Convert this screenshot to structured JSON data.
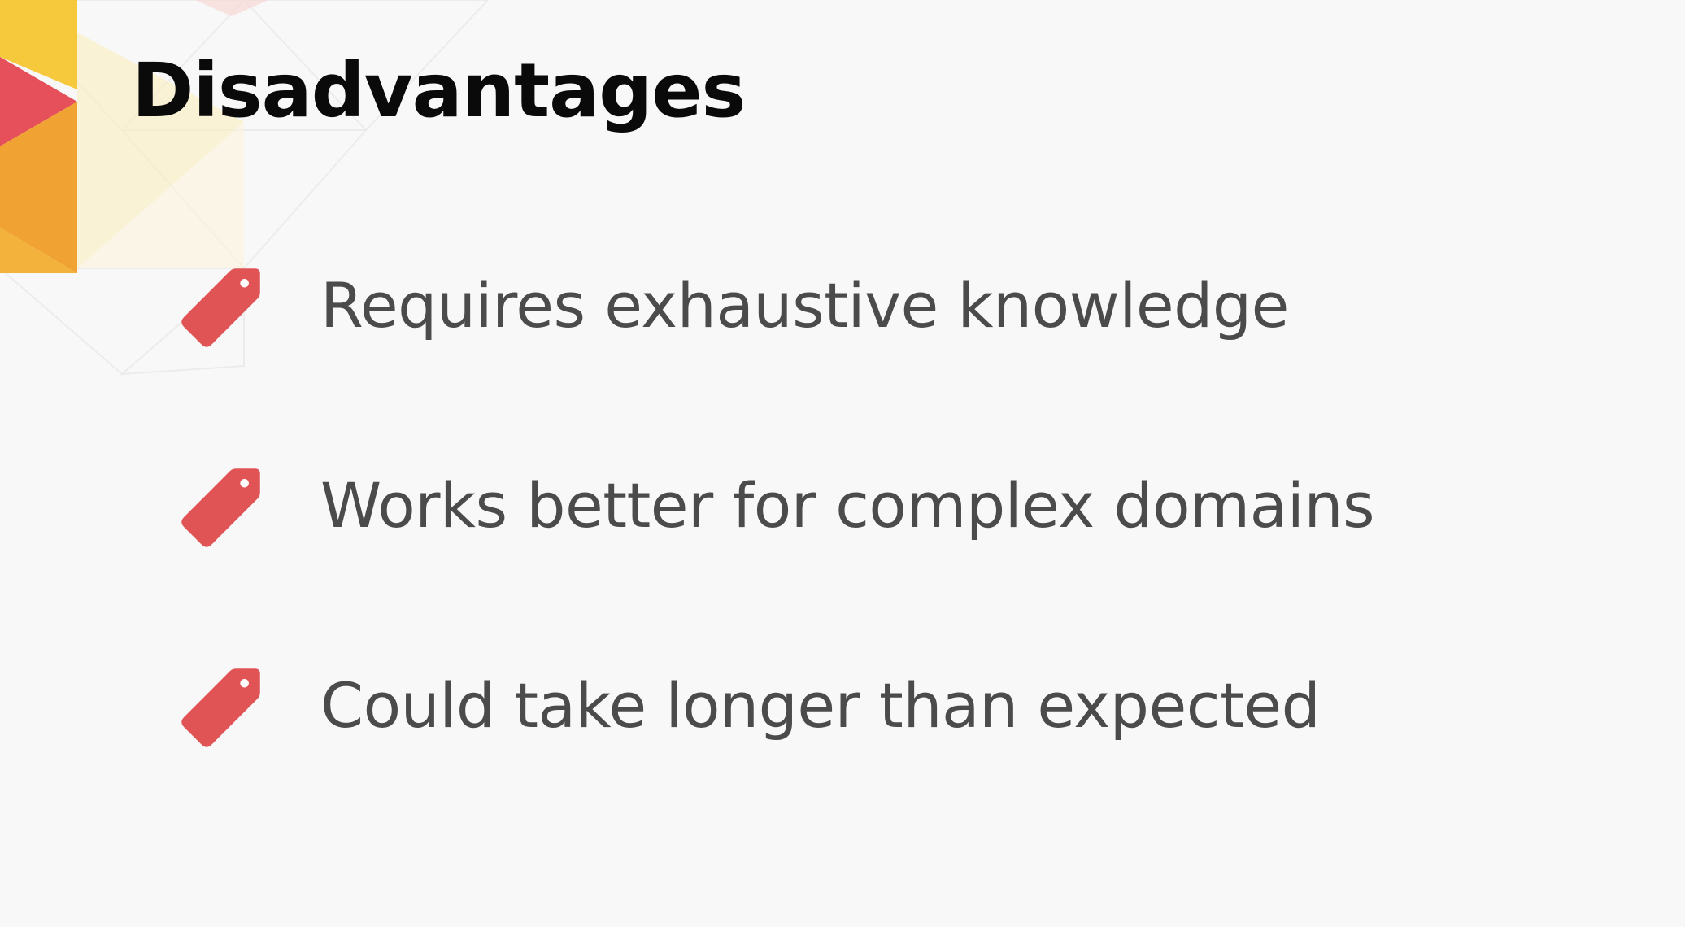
{
  "slide": {
    "title": "Disadvantages",
    "bullets": [
      {
        "text": "Requires exhaustive knowledge",
        "icon": "tag-icon"
      },
      {
        "text": "Works better for complex domains",
        "icon": "tag-icon"
      },
      {
        "text": "Could take longer than expected",
        "icon": "tag-icon"
      }
    ]
  },
  "colors": {
    "background": "#f8f8f8",
    "title": "#0a0a0a",
    "bullet_text": "#4b4b4b",
    "tag_icon": "#e05456",
    "decor_yellow": "#f5c93b",
    "decor_orange": "#f0a332",
    "decor_red": "#e5505a",
    "decor_pale": "#fbeec2"
  }
}
